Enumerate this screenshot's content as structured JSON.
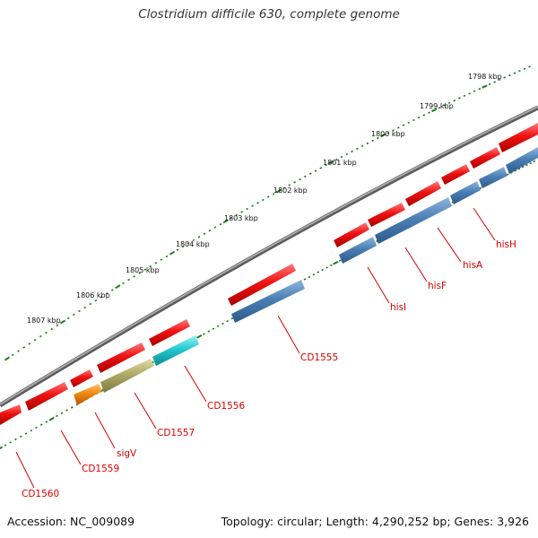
{
  "title": "Clostridium difficile 630, complete genome",
  "footer": {
    "accession": "Accession: NC_009089",
    "summary": "Topology: circular; Length: 4,290,252 bp; Genes: 3,926"
  },
  "colors": {
    "backbone": "#8c8c8c",
    "tick": "#1f7a1f",
    "label": "#d40000",
    "forward": "#ee1111",
    "blue": "#4a7fb5",
    "cyan": "#22c8d0",
    "olive": "#b0aa66",
    "orange": "#f08a10"
  },
  "scale_labels": [
    "1798 kbp",
    "1799 kbp",
    "1800 kbp",
    "1801 kbp",
    "1802 kbp",
    "1803 kbp",
    "1804 kbp",
    "1805 kbp",
    "1806 kbp",
    "1807 kbp"
  ],
  "gene_labels": [
    "hisH",
    "hisA",
    "hisF",
    "hisI",
    "CD1555",
    "CD1556",
    "CD1557",
    "sigV",
    "CD1559",
    "CD1560"
  ]
}
